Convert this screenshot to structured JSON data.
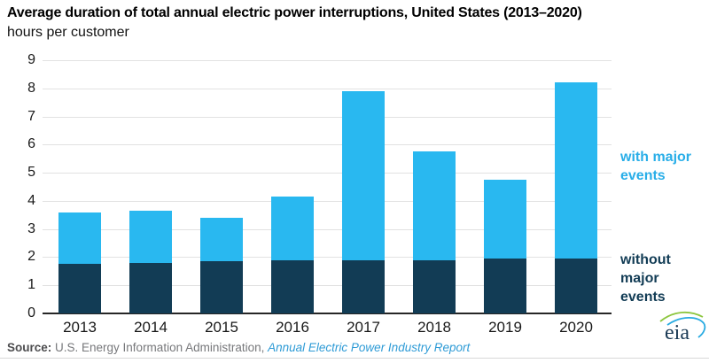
{
  "header": {
    "title": "Average duration of total annual electric power interruptions, United States (2013–2020)",
    "subtitle": "hours per customer"
  },
  "chart_data": {
    "type": "bar",
    "stacked": true,
    "title": "Average duration of total annual electric power interruptions, United States (2013–2020)",
    "subtitle_unit": "hours per customer",
    "categories": [
      "2013",
      "2014",
      "2015",
      "2016",
      "2017",
      "2018",
      "2019",
      "2020"
    ],
    "series": [
      {
        "name": "without major events",
        "color": "#123c55",
        "values": [
          1.75,
          1.8,
          1.85,
          1.9,
          1.9,
          1.9,
          1.95,
          1.95
        ]
      },
      {
        "name": "with major events",
        "color": "#29b8f0",
        "values": [
          1.85,
          1.85,
          1.55,
          2.25,
          6.0,
          3.85,
          2.8,
          6.25
        ]
      }
    ],
    "totals": [
      3.6,
      3.65,
      3.4,
      4.15,
      7.9,
      5.75,
      4.75,
      8.2
    ],
    "xlabel": "",
    "ylabel": "hours per customer",
    "ylim": [
      0,
      9
    ],
    "ytick_step": 1,
    "grid": true,
    "legend_position": "right",
    "legend": {
      "with_label": "with major\nevents",
      "with_color": "#29aee8",
      "without_label": "without\nmajor\nevents",
      "without_color": "#123c55"
    }
  },
  "source": {
    "prefix": "Source:",
    "org": " U.S. Energy Information Administration, ",
    "report": "Annual Electric Power Industry Report"
  },
  "logo": {
    "label": "eia",
    "arc_green": "#8dc63f",
    "arc_blue": "#27aae1",
    "text_color": "#1b3a55"
  }
}
